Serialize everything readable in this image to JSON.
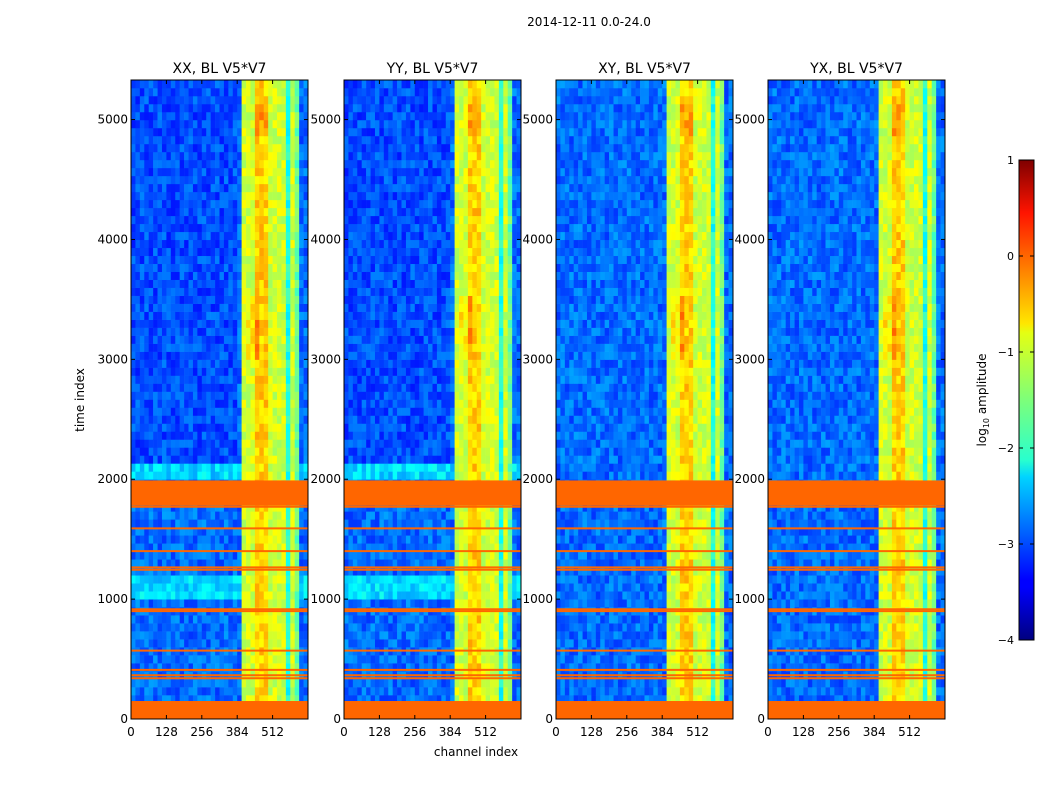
{
  "chart_data": {
    "type": "heatmap",
    "suptitle": "2014-12-11 0.0-24.0",
    "xlabel": "channel index",
    "ylabel": "time index",
    "xlim": [
      0,
      640
    ],
    "ylim": [
      0,
      5330
    ],
    "x_ticks": [
      0,
      128,
      256,
      384,
      512
    ],
    "y_ticks": [
      0,
      1000,
      2000,
      3000,
      4000,
      5000
    ],
    "panels": [
      {
        "title": "XX, BL V5*V7"
      },
      {
        "title": "YY, BL V5*V7"
      },
      {
        "title": "XY, BL V5*V7"
      },
      {
        "title": "YX, BL V5*V7"
      }
    ],
    "flagged_time_ranges": [
      [
        0,
        150
      ],
      [
        1780,
        1990
      ]
    ],
    "flagged_time_lines": [
      340,
      365,
      410,
      570,
      900,
      915,
      1245,
      1265,
      1400,
      1590,
      1770
    ],
    "bright_channel_band": [
      400,
      600
    ],
    "colorbar": {
      "label": "log10 amplitude",
      "label_main": "log",
      "label_sub": "10",
      "label_tail": " amplitude",
      "range": [
        -4,
        1
      ],
      "ticks": [
        1,
        0,
        -1,
        -2,
        -3,
        -4
      ],
      "tick_labels": [
        "1",
        "0",
        "−1",
        "−2",
        "−3",
        "−4"
      ],
      "colormap": "jet"
    },
    "flag_color": "#ff6600"
  }
}
